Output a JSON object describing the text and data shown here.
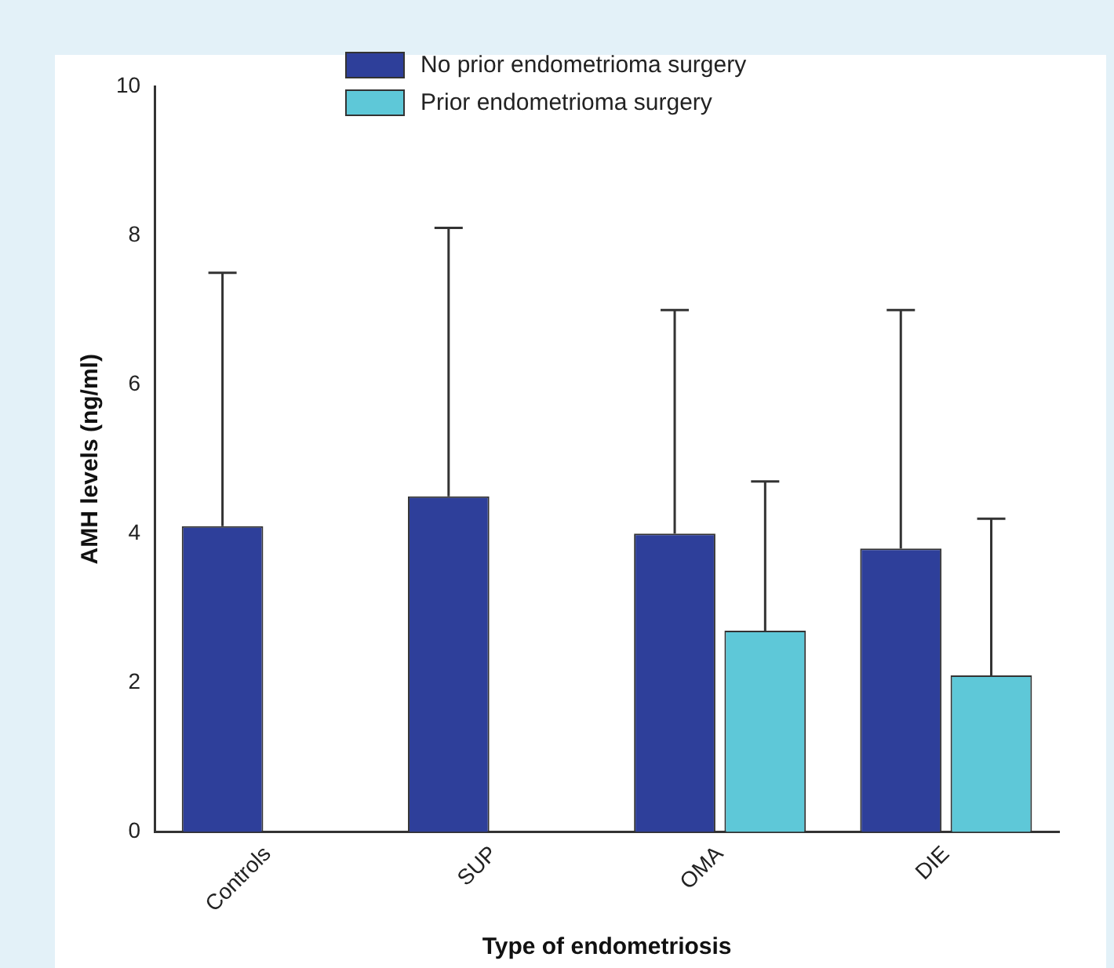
{
  "chart_data": {
    "type": "bar",
    "xlabel": "Type of endometriosis",
    "ylabel": "AMH levels (ng/ml)",
    "categories": [
      "Controls",
      "SUP",
      "OMA",
      "DIE"
    ],
    "series": [
      {
        "name": "No prior endometrioma surgery",
        "color": "#2e3f9a",
        "values": [
          4.1,
          4.5,
          4.0,
          3.8
        ],
        "errors": [
          [
            4.1,
            7.5
          ],
          [
            4.5,
            8.1
          ],
          [
            4.0,
            7.0
          ],
          [
            3.8,
            7.0
          ]
        ]
      },
      {
        "name": "Prior endometrioma surgery",
        "color": "#5ec8d8",
        "values": [
          null,
          null,
          2.7,
          2.1
        ],
        "errors": [
          null,
          null,
          [
            2.7,
            4.7
          ],
          [
            2.1,
            4.2
          ]
        ]
      }
    ],
    "ylim": [
      0,
      10
    ],
    "yticks": [
      0,
      2,
      4,
      6,
      8,
      10
    ],
    "grid": false,
    "legend": "top"
  }
}
